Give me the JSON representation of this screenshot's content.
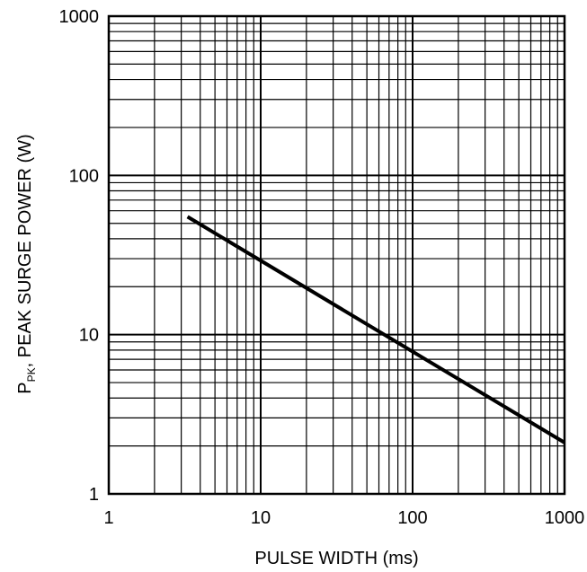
{
  "chart_data": {
    "type": "line",
    "x_scale": "log",
    "y_scale": "log",
    "xlim": [
      1,
      1000
    ],
    "ylim": [
      1,
      1000
    ],
    "grid": true,
    "x_ticks": [
      1,
      10,
      100,
      1000
    ],
    "y_ticks": [
      1,
      10,
      100,
      1000
    ],
    "x_tick_labels": [
      "1",
      "10",
      "100",
      "1000"
    ],
    "y_tick_labels": [
      "1",
      "10",
      "100",
      "1000"
    ],
    "xlabel": "PULSE WIDTH (ms)",
    "ylabel": {
      "prefix": "P",
      "subscript": "PK",
      "suffix": ", PEAK SURGE POWER (W)"
    },
    "series": [
      {
        "x": [
          3.3,
          1000
        ],
        "y": [
          55,
          2.1
        ]
      }
    ],
    "colors": {
      "line": "#000000",
      "grid": "#000000"
    }
  }
}
